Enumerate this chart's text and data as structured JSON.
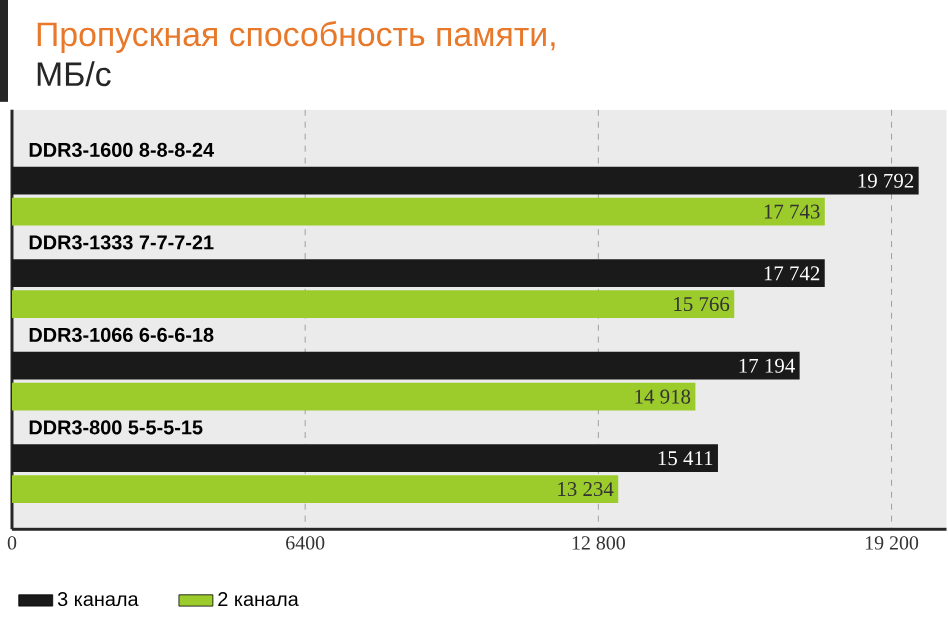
{
  "chart_data": {
    "type": "bar",
    "orientation": "horizontal",
    "title": "Пропускная способность памяти,",
    "subtitle": "МБ/с",
    "categories": [
      "DDR3-1600 8-8-8-24",
      "DDR3-1333 7-7-7-21",
      "DDR3-1066 6-6-6-18",
      "DDR3-800 5-5-5-15"
    ],
    "series": [
      {
        "name": "3 канала",
        "color": "#1a1a1a",
        "values": [
          19792,
          17742,
          17194,
          15411
        ],
        "value_labels": [
          "19 792",
          "17 742",
          "17 194",
          "15 411"
        ]
      },
      {
        "name": "2 канала",
        "color": "#9ccb2c",
        "values": [
          17743,
          15766,
          14918,
          13234
        ],
        "value_labels": [
          "17 743",
          "15 766",
          "14 918",
          "13 234"
        ]
      }
    ],
    "xlim": [
      0,
      20400
    ],
    "xticks": [
      0,
      6400,
      {
        "value": 12800,
        "label": "12 800"
      },
      {
        "value": 19200,
        "label": "19 200"
      }
    ],
    "grid": "x",
    "legend": "bottom left"
  }
}
